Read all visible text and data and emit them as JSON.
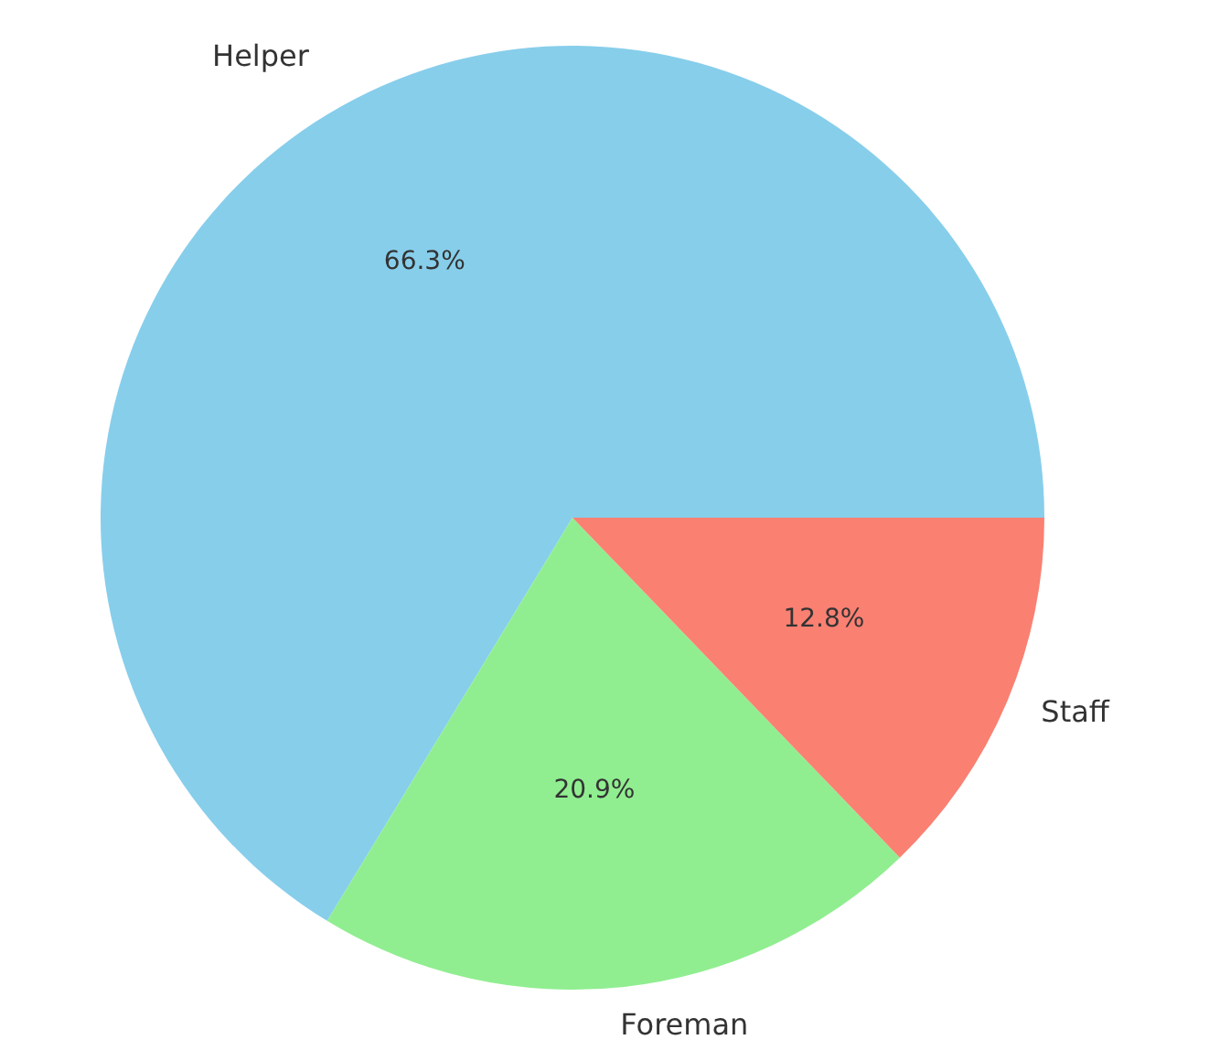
{
  "chart_data": {
    "type": "pie",
    "categories": [
      "Helper",
      "Foreman",
      "Staff"
    ],
    "values": [
      66.3,
      20.9,
      12.8
    ],
    "colors": [
      "#87ceeb",
      "#90ee90",
      "#fa8072"
    ],
    "value_labels": [
      "66.3%",
      "20.9%",
      "12.8%"
    ],
    "legend": false
  }
}
